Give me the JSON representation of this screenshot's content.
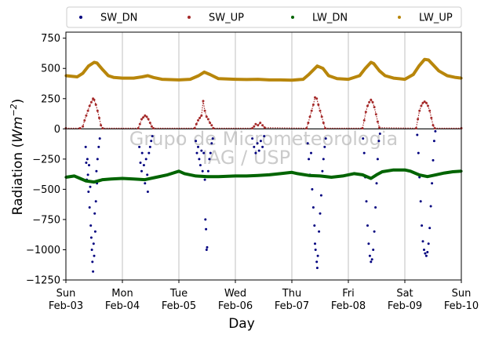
{
  "chart_data": {
    "type": "scatter",
    "title": "",
    "xlabel": "Day",
    "ylabel": "Radiation (Wm⁻²)",
    "ylabel_parts": {
      "base": "Radiation (",
      "unit": "Wm",
      "exp": "−2",
      "close": ")"
    },
    "xlim": [
      0,
      7
    ],
    "ylim": [
      -1250,
      800
    ],
    "yticks": [
      -1250,
      -1000,
      -750,
      -500,
      -250,
      0,
      250,
      500,
      750
    ],
    "ytick_labels": [
      "−1250",
      "−1000",
      "−750",
      "−500",
      "−250",
      "0",
      "250",
      "500",
      "750"
    ],
    "xticks": [
      {
        "day": "Sun",
        "date": "Feb-03"
      },
      {
        "day": "Mon",
        "date": "Feb-04"
      },
      {
        "day": "Tue",
        "date": "Feb-05"
      },
      {
        "day": "Wed",
        "date": "Feb-06"
      },
      {
        "day": "Thu",
        "date": "Feb-07"
      },
      {
        "day": "Fri",
        "date": "Feb-08"
      },
      {
        "day": "Sat",
        "date": "Feb-09"
      },
      {
        "day": "Sun",
        "date": "Feb-10"
      }
    ],
    "grid": "vertical",
    "zero_line": true,
    "legend_position": "top",
    "watermark": [
      "Grupo de Micrometeorologia",
      "IAG / USP"
    ],
    "series": [
      {
        "name": "SW_DN",
        "color": "#00007f",
        "points": [
          [
            0.35,
            -150
          ],
          [
            0.36,
            -280
          ],
          [
            0.37,
            -420
          ],
          [
            0.38,
            -250
          ],
          [
            0.39,
            -380
          ],
          [
            0.4,
            -520
          ],
          [
            0.41,
            -300
          ],
          [
            0.42,
            -650
          ],
          [
            0.43,
            -480
          ],
          [
            0.44,
            -800
          ],
          [
            0.45,
            -900
          ],
          [
            0.46,
            -1000
          ],
          [
            0.47,
            -1100
          ],
          [
            0.48,
            -1180
          ],
          [
            0.49,
            -950
          ],
          [
            0.5,
            -1050
          ],
          [
            0.51,
            -700
          ],
          [
            0.52,
            -850
          ],
          [
            0.53,
            -600
          ],
          [
            0.54,
            -350
          ],
          [
            0.55,
            -450
          ],
          [
            0.56,
            -250
          ],
          [
            0.58,
            -150
          ],
          [
            0.6,
            -80
          ],
          [
            1.3,
            -150
          ],
          [
            1.32,
            -280
          ],
          [
            1.34,
            -350
          ],
          [
            1.35,
            -200
          ],
          [
            1.37,
            -420
          ],
          [
            1.38,
            -300
          ],
          [
            1.4,
            -450
          ],
          [
            1.42,
            -250
          ],
          [
            1.44,
            -380
          ],
          [
            1.45,
            -520
          ],
          [
            1.47,
            -200
          ],
          [
            1.49,
            -150
          ],
          [
            1.51,
            -100
          ],
          [
            1.53,
            -60
          ],
          [
            2.3,
            -100
          ],
          [
            2.32,
            -200
          ],
          [
            2.34,
            -150
          ],
          [
            2.36,
            -250
          ],
          [
            2.38,
            -300
          ],
          [
            2.4,
            -180
          ],
          [
            2.42,
            -350
          ],
          [
            2.44,
            -200
          ],
          [
            2.46,
            -420
          ],
          [
            2.47,
            -750
          ],
          [
            2.48,
            -830
          ],
          [
            2.49,
            -1000
          ],
          [
            2.5,
            -980
          ],
          [
            2.52,
            -350
          ],
          [
            2.54,
            -250
          ],
          [
            2.56,
            -200
          ],
          [
            2.58,
            -120
          ],
          [
            2.6,
            -80
          ],
          [
            3.3,
            -80
          ],
          [
            3.33,
            -150
          ],
          [
            3.36,
            -200
          ],
          [
            3.39,
            -120
          ],
          [
            3.42,
            -180
          ],
          [
            3.45,
            -100
          ],
          [
            3.48,
            -150
          ],
          [
            3.51,
            -60
          ],
          [
            4.28,
            -120
          ],
          [
            4.3,
            -250
          ],
          [
            4.32,
            -380
          ],
          [
            4.34,
            -200
          ],
          [
            4.36,
            -500
          ],
          [
            4.38,
            -650
          ],
          [
            4.4,
            -800
          ],
          [
            4.41,
            -950
          ],
          [
            4.42,
            -1000
          ],
          [
            4.44,
            -1100
          ],
          [
            4.45,
            -1150
          ],
          [
            4.46,
            -1050
          ],
          [
            4.48,
            -850
          ],
          [
            4.5,
            -700
          ],
          [
            4.52,
            -550
          ],
          [
            4.54,
            -350
          ],
          [
            4.56,
            -250
          ],
          [
            4.58,
            -150
          ],
          [
            4.6,
            -80
          ],
          [
            5.26,
            -80
          ],
          [
            5.28,
            -200
          ],
          [
            5.3,
            -400
          ],
          [
            5.32,
            -600
          ],
          [
            5.34,
            -800
          ],
          [
            5.36,
            -950
          ],
          [
            5.38,
            -1050
          ],
          [
            5.4,
            -1100
          ],
          [
            5.42,
            -1080
          ],
          [
            5.44,
            -1000
          ],
          [
            5.46,
            -850
          ],
          [
            5.48,
            -650
          ],
          [
            5.5,
            -450
          ],
          [
            5.52,
            -250
          ],
          [
            5.54,
            -100
          ],
          [
            5.56,
            -40
          ],
          [
            6.22,
            -50
          ],
          [
            6.24,
            -200
          ],
          [
            6.26,
            -400
          ],
          [
            6.28,
            -600
          ],
          [
            6.3,
            -800
          ],
          [
            6.32,
            -930
          ],
          [
            6.34,
            -1000
          ],
          [
            6.36,
            -1030
          ],
          [
            6.38,
            -1050
          ],
          [
            6.4,
            -1020
          ],
          [
            6.42,
            -950
          ],
          [
            6.44,
            -820
          ],
          [
            6.46,
            -640
          ],
          [
            6.48,
            -450
          ],
          [
            6.5,
            -260
          ],
          [
            6.52,
            -100
          ],
          [
            6.54,
            -20
          ]
        ]
      },
      {
        "name": "SW_UP",
        "color": "#a52a2a",
        "points": [
          [
            0.0,
            5
          ],
          [
            0.25,
            5
          ],
          [
            0.3,
            20
          ],
          [
            0.33,
            70
          ],
          [
            0.36,
            110
          ],
          [
            0.39,
            150
          ],
          [
            0.42,
            190
          ],
          [
            0.45,
            220
          ],
          [
            0.48,
            250
          ],
          [
            0.5,
            240
          ],
          [
            0.53,
            200
          ],
          [
            0.56,
            150
          ],
          [
            0.59,
            90
          ],
          [
            0.62,
            30
          ],
          [
            0.65,
            5
          ],
          [
            1.28,
            5
          ],
          [
            1.31,
            40
          ],
          [
            1.34,
            80
          ],
          [
            1.37,
            95
          ],
          [
            1.4,
            110
          ],
          [
            1.43,
            100
          ],
          [
            1.46,
            80
          ],
          [
            1.49,
            50
          ],
          [
            1.52,
            20
          ],
          [
            1.55,
            5
          ],
          [
            2.28,
            5
          ],
          [
            2.31,
            40
          ],
          [
            2.34,
            70
          ],
          [
            2.37,
            90
          ],
          [
            2.4,
            110
          ],
          [
            2.43,
            230
          ],
          [
            2.46,
            150
          ],
          [
            2.49,
            100
          ],
          [
            2.52,
            80
          ],
          [
            2.55,
            50
          ],
          [
            2.58,
            30
          ],
          [
            2.61,
            5
          ],
          [
            3.3,
            5
          ],
          [
            3.33,
            20
          ],
          [
            3.36,
            40
          ],
          [
            3.4,
            30
          ],
          [
            3.44,
            50
          ],
          [
            3.48,
            30
          ],
          [
            3.52,
            10
          ],
          [
            4.26,
            5
          ],
          [
            4.29,
            50
          ],
          [
            4.32,
            100
          ],
          [
            4.35,
            150
          ],
          [
            4.38,
            200
          ],
          [
            4.41,
            260
          ],
          [
            4.44,
            250
          ],
          [
            4.47,
            200
          ],
          [
            4.5,
            150
          ],
          [
            4.53,
            100
          ],
          [
            4.56,
            50
          ],
          [
            4.59,
            5
          ],
          [
            5.25,
            5
          ],
          [
            5.28,
            70
          ],
          [
            5.31,
            140
          ],
          [
            5.34,
            190
          ],
          [
            5.37,
            220
          ],
          [
            5.4,
            240
          ],
          [
            5.43,
            220
          ],
          [
            5.46,
            180
          ],
          [
            5.49,
            120
          ],
          [
            5.52,
            60
          ],
          [
            5.55,
            10
          ],
          [
            6.2,
            5
          ],
          [
            6.23,
            80
          ],
          [
            6.26,
            150
          ],
          [
            6.29,
            190
          ],
          [
            6.32,
            215
          ],
          [
            6.35,
            225
          ],
          [
            6.38,
            215
          ],
          [
            6.41,
            190
          ],
          [
            6.44,
            150
          ],
          [
            6.47,
            90
          ],
          [
            6.5,
            30
          ],
          [
            6.53,
            5
          ],
          [
            7.0,
            5
          ]
        ]
      },
      {
        "name": "LW_DN",
        "color": "#006400",
        "points": [
          [
            0.0,
            -400
          ],
          [
            0.15,
            -390
          ],
          [
            0.25,
            -410
          ],
          [
            0.35,
            -430
          ],
          [
            0.5,
            -440
          ],
          [
            0.65,
            -420
          ],
          [
            0.8,
            -415
          ],
          [
            1.0,
            -410
          ],
          [
            1.2,
            -415
          ],
          [
            1.4,
            -420
          ],
          [
            1.6,
            -400
          ],
          [
            1.8,
            -380
          ],
          [
            2.0,
            -350
          ],
          [
            2.1,
            -370
          ],
          [
            2.3,
            -390
          ],
          [
            2.5,
            -395
          ],
          [
            2.7,
            -395
          ],
          [
            3.0,
            -390
          ],
          [
            3.2,
            -390
          ],
          [
            3.4,
            -385
          ],
          [
            3.6,
            -380
          ],
          [
            3.8,
            -370
          ],
          [
            4.0,
            -360
          ],
          [
            4.1,
            -370
          ],
          [
            4.3,
            -385
          ],
          [
            4.5,
            -390
          ],
          [
            4.7,
            -400
          ],
          [
            4.9,
            -390
          ],
          [
            5.0,
            -380
          ],
          [
            5.1,
            -370
          ],
          [
            5.25,
            -380
          ],
          [
            5.4,
            -410
          ],
          [
            5.5,
            -380
          ],
          [
            5.6,
            -355
          ],
          [
            5.8,
            -340
          ],
          [
            6.0,
            -340
          ],
          [
            6.1,
            -350
          ],
          [
            6.25,
            -380
          ],
          [
            6.4,
            -395
          ],
          [
            6.55,
            -380
          ],
          [
            6.7,
            -365
          ],
          [
            6.85,
            -355
          ],
          [
            7.0,
            -350
          ]
        ]
      },
      {
        "name": "LW_UP",
        "color": "#b8860b",
        "points": [
          [
            0.0,
            440
          ],
          [
            0.1,
            435
          ],
          [
            0.2,
            430
          ],
          [
            0.3,
            460
          ],
          [
            0.4,
            520
          ],
          [
            0.5,
            550
          ],
          [
            0.55,
            545
          ],
          [
            0.65,
            490
          ],
          [
            0.75,
            440
          ],
          [
            0.85,
            425
          ],
          [
            1.0,
            420
          ],
          [
            1.2,
            420
          ],
          [
            1.35,
            430
          ],
          [
            1.45,
            440
          ],
          [
            1.55,
            425
          ],
          [
            1.7,
            410
          ],
          [
            2.0,
            405
          ],
          [
            2.2,
            410
          ],
          [
            2.35,
            440
          ],
          [
            2.45,
            470
          ],
          [
            2.55,
            450
          ],
          [
            2.7,
            415
          ],
          [
            3.0,
            410
          ],
          [
            3.2,
            408
          ],
          [
            3.4,
            410
          ],
          [
            3.6,
            405
          ],
          [
            3.8,
            405
          ],
          [
            4.0,
            403
          ],
          [
            4.2,
            410
          ],
          [
            4.3,
            450
          ],
          [
            4.45,
            520
          ],
          [
            4.55,
            500
          ],
          [
            4.65,
            440
          ],
          [
            4.8,
            415
          ],
          [
            5.0,
            410
          ],
          [
            5.2,
            440
          ],
          [
            5.3,
            500
          ],
          [
            5.4,
            550
          ],
          [
            5.45,
            540
          ],
          [
            5.55,
            480
          ],
          [
            5.65,
            440
          ],
          [
            5.8,
            420
          ],
          [
            6.0,
            410
          ],
          [
            6.15,
            450
          ],
          [
            6.25,
            520
          ],
          [
            6.35,
            575
          ],
          [
            6.42,
            570
          ],
          [
            6.5,
            530
          ],
          [
            6.6,
            480
          ],
          [
            6.75,
            440
          ],
          [
            6.9,
            425
          ],
          [
            7.0,
            420
          ]
        ]
      }
    ]
  }
}
